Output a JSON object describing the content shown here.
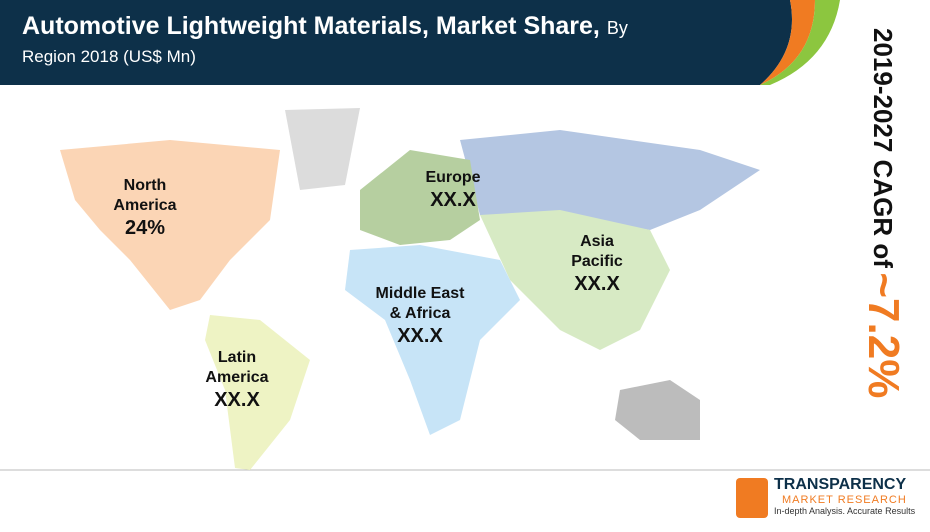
{
  "header": {
    "title": "Automotive Lightweight Materials, Market Share,",
    "title_suffix": "By",
    "subtitle": "Region 2018 (US$ Mn)"
  },
  "cagr": {
    "label": "2019-2027 CAGR of",
    "value": "~7.2%"
  },
  "regions": [
    {
      "name": "North America",
      "value": "24%"
    },
    {
      "name": "Europe",
      "value": "XX.X"
    },
    {
      "name": "Asia Pacific",
      "value": "XX.X"
    },
    {
      "name": "Middle East & Africa",
      "value": "XX.X"
    },
    {
      "name": "Latin America",
      "value": "XX.X"
    }
  ],
  "logo": {
    "name": "TRANSPARENCY",
    "subname": "MARKET RESEARCH",
    "tagline": "In-depth Analysis. Accurate Results"
  }
}
